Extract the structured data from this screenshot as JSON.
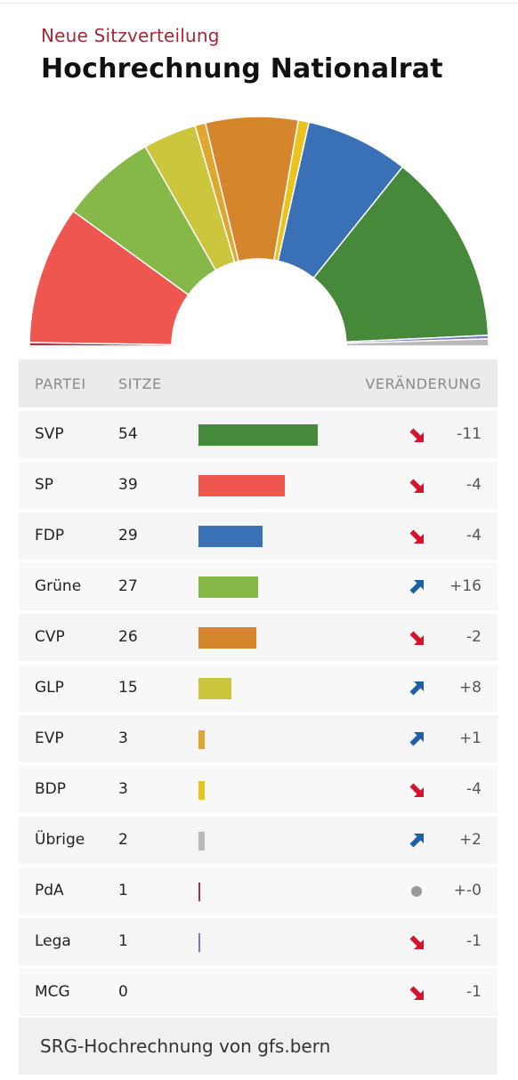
{
  "header": {
    "kicker": "Neue Sitzverteilung",
    "title": "Hochrechnung Nationalrat"
  },
  "table": {
    "col_party": "PARTEI",
    "col_seats": "SITZE",
    "col_change": "VERÄNDERUNG"
  },
  "footer": {
    "source": "SRG-Hochrechnung von gfs.bern"
  },
  "chart_data": {
    "type": "bar",
    "total_seats": 200,
    "max_value": 54,
    "hemicycle_order": [
      "PdA",
      "SP",
      "Grüne",
      "GLP",
      "EVP",
      "CVP",
      "BDP",
      "FDP",
      "SVP",
      "Lega",
      "Übrige"
    ],
    "parties": [
      {
        "name": "SVP",
        "seats": "54",
        "value": 54,
        "change": "-11",
        "direction": "down",
        "color": "#46893b"
      },
      {
        "name": "SP",
        "seats": "39",
        "value": 39,
        "change": "-4",
        "direction": "down",
        "color": "#ef5650"
      },
      {
        "name": "FDP",
        "seats": "29",
        "value": 29,
        "change": "-4",
        "direction": "down",
        "color": "#3a70b5"
      },
      {
        "name": "Grüne",
        "seats": "27",
        "value": 27,
        "change": "+16",
        "direction": "up",
        "color": "#85b846"
      },
      {
        "name": "CVP",
        "seats": "26",
        "value": 26,
        "change": "-2",
        "direction": "down",
        "color": "#d5862c"
      },
      {
        "name": "GLP",
        "seats": "15",
        "value": 15,
        "change": "+8",
        "direction": "up",
        "color": "#cbc63e"
      },
      {
        "name": "EVP",
        "seats": "3",
        "value": 3,
        "change": "+1",
        "direction": "up",
        "color": "#dfa630"
      },
      {
        "name": "BDP",
        "seats": "3",
        "value": 3,
        "change": "-4",
        "direction": "down",
        "color": "#e9c41e"
      },
      {
        "name": "Übrige",
        "seats": "2",
        "value": 2,
        "change": "+2",
        "direction": "up",
        "color": "#b9b9b9"
      },
      {
        "name": "PdA",
        "seats": "1",
        "value": 1,
        "change": "+-0",
        "direction": "none",
        "color": "#a53545"
      },
      {
        "name": "Lega",
        "seats": "1",
        "value": 1,
        "change": "-1",
        "direction": "down",
        "color": "#7b76c2"
      },
      {
        "name": "MCG",
        "seats": "0",
        "value": 0,
        "change": "-1",
        "direction": "down",
        "color": "#888888"
      }
    ],
    "arrow_colors": {
      "up": "#1f5fa3",
      "down": "#d4142d",
      "none": "#999999"
    }
  }
}
